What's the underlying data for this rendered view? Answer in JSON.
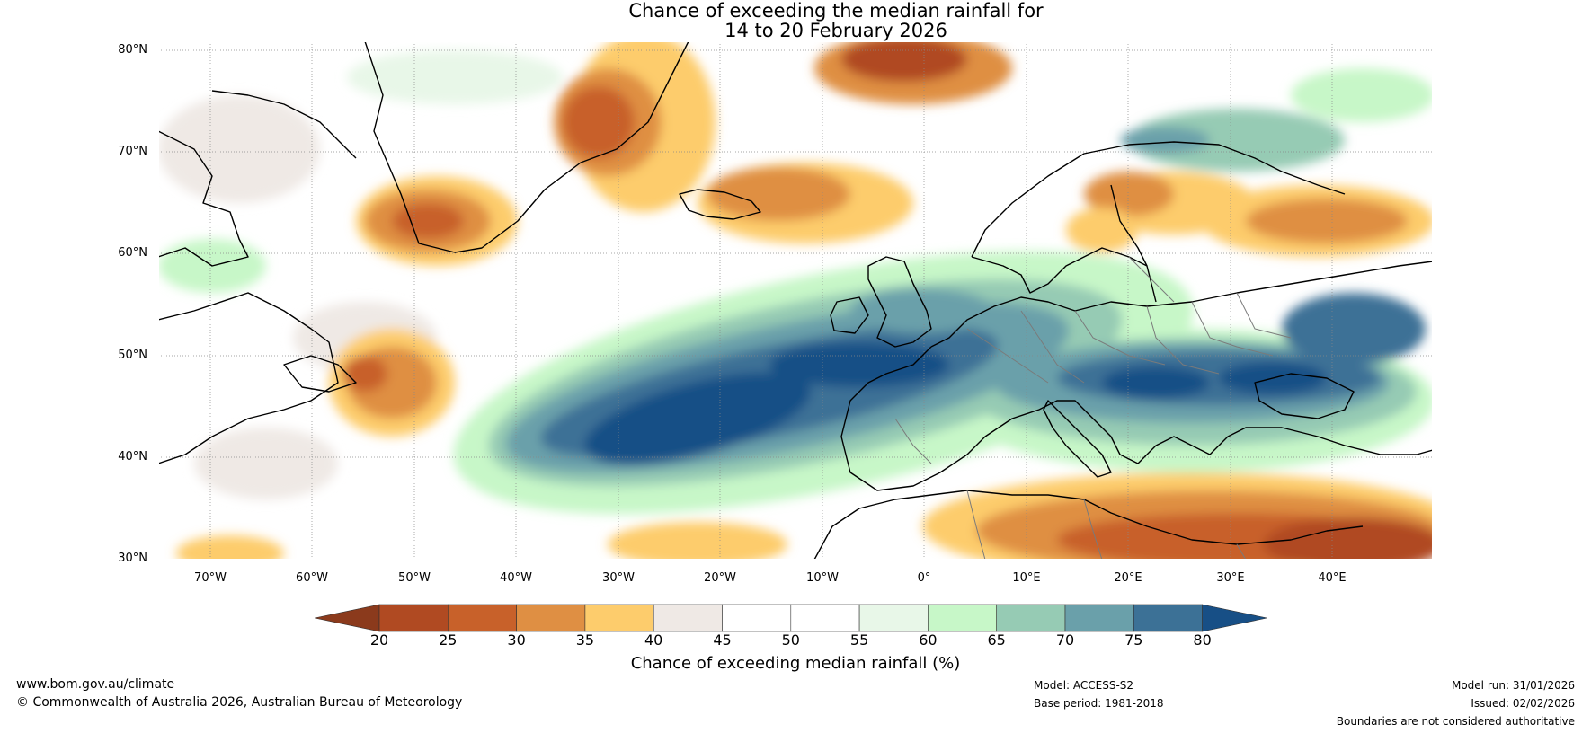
{
  "title": {
    "line1": "Chance of exceeding the median rainfall for",
    "line2": "14 to 20 February 2026"
  },
  "latitudes": [
    "80°N",
    "70°N",
    "60°N",
    "50°N",
    "40°N",
    "30°N"
  ],
  "longitudes": [
    "70°W",
    "60°W",
    "50°W",
    "40°W",
    "30°W",
    "20°W",
    "10°W",
    "0°",
    "10°E",
    "20°E",
    "30°E",
    "40°E"
  ],
  "colorbar": {
    "ticks": [
      "20",
      "25",
      "30",
      "35",
      "40",
      "45",
      "50",
      "55",
      "60",
      "65",
      "70",
      "75",
      "80"
    ],
    "colors": [
      "#8b3a1c",
      "#b04a22",
      "#c8612a",
      "#df8f43",
      "#fdcc6c",
      "#efe9e5",
      "#ffffff",
      "#ffffff",
      "#e8f7e8",
      "#c7f7c8",
      "#96cbb4",
      "#6aa0aa",
      "#3c7196",
      "#174f86"
    ],
    "label": "Chance of exceeding median rainfall (%)"
  },
  "footer": {
    "url": "www.bom.gov.au/climate",
    "copyright": "© Commonwealth of Australia 2026, Australian Bureau of Meteorology",
    "model": "Model: ACCESS-S2",
    "base_period": "Base period: 1981-2018",
    "model_run": "Model run: 31/01/2026",
    "issued": "Issued: 02/02/2026",
    "disclaimer": "Boundaries are not considered authoritative"
  }
}
